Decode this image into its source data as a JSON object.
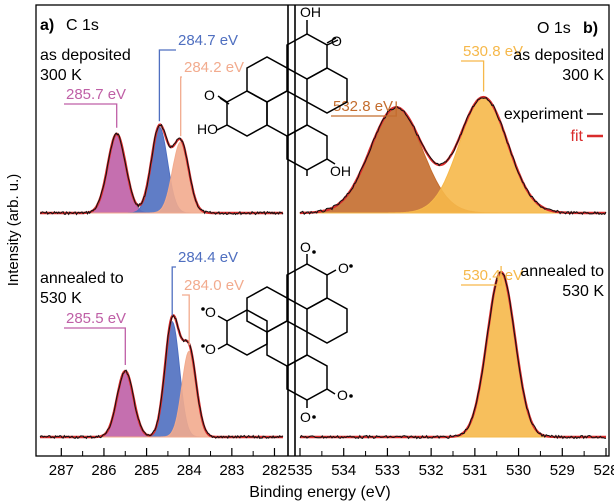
{
  "figure": {
    "ylabel": "Intensity (arb. u.)",
    "xlabel": "Binding energy (eV)",
    "legend": {
      "experiment": "experiment",
      "fit": "fit"
    },
    "colors": {
      "experiment": "#111111",
      "fit": "#d92b2b",
      "c_magenta": "#bf5fa6",
      "c_blue": "#4f6fc0",
      "c_peach": "#f2ab8e",
      "o_orange": "#f6b84a",
      "o_brown": "#c46d2e"
    }
  },
  "panel_a": {
    "tag": "a)",
    "element": "C 1s",
    "top_condition": [
      "as deposited",
      "300 K"
    ],
    "bottom_condition": [
      "annealed to",
      "530 K"
    ],
    "xticks": [
      "287",
      "286",
      "285",
      "284",
      "283",
      "282"
    ]
  },
  "panel_b": {
    "tag": "b)",
    "element": "O 1s",
    "top_condition": [
      "as deposited",
      "300 K"
    ],
    "bottom_condition": [
      "annealed to",
      "530 K"
    ],
    "xticks": [
      "535",
      "534",
      "533",
      "532",
      "531",
      "530",
      "529",
      "528"
    ]
  },
  "molecules": {
    "top_labels": [
      "OH",
      "O",
      "O",
      "HO",
      "OH"
    ],
    "bottom_labels": [
      "O",
      "O",
      "O",
      "O",
      "O",
      "O"
    ]
  },
  "chart_data": [
    {
      "type": "area",
      "panel": "a",
      "spectrum": "C 1s",
      "condition": "as deposited 300 K",
      "xlim": [
        287.5,
        281.8
      ],
      "x_reversed": true,
      "xlabel": "Binding energy (eV)",
      "ylabel": "Intensity (arb. u.)",
      "peak_labels": [
        "285.7 eV",
        "284.7 eV",
        "284.2 eV"
      ],
      "series": [
        {
          "name": "285.7 eV",
          "color": "#bf5fa6",
          "center": 285.7,
          "fwhm": 0.5,
          "height": 0.48
        },
        {
          "name": "284.7 eV",
          "color": "#4f6fc0",
          "center": 284.7,
          "fwhm": 0.45,
          "height": 0.52
        },
        {
          "name": "284.2 eV",
          "color": "#f2ab8e",
          "center": 284.2,
          "fwhm": 0.45,
          "height": 0.43
        }
      ]
    },
    {
      "type": "area",
      "panel": "a",
      "spectrum": "C 1s",
      "condition": "annealed to 530 K",
      "xlim": [
        287.5,
        281.8
      ],
      "x_reversed": true,
      "xlabel": "Binding energy (eV)",
      "ylabel": "Intensity (arb. u.)",
      "peak_labels": [
        "285.5 eV",
        "284.4 eV",
        "284.0 eV"
      ],
      "series": [
        {
          "name": "285.5 eV",
          "color": "#bf5fa6",
          "center": 285.5,
          "fwhm": 0.45,
          "height": 0.4
        },
        {
          "name": "284.4 eV",
          "color": "#4f6fc0",
          "center": 284.4,
          "fwhm": 0.4,
          "height": 0.7
        },
        {
          "name": "284.0 eV",
          "color": "#f2ab8e",
          "center": 284.0,
          "fwhm": 0.4,
          "height": 0.52
        }
      ]
    },
    {
      "type": "area",
      "panel": "b",
      "spectrum": "O 1s",
      "condition": "as deposited 300 K",
      "xlim": [
        535.0,
        528.0
      ],
      "x_reversed": true,
      "xlabel": "Binding energy (eV)",
      "ylabel": "Intensity (arb. u.)",
      "peak_labels": [
        "532.8 eV",
        "530.8 eV"
      ],
      "series": [
        {
          "name": "532.8 eV",
          "color": "#c46d2e",
          "center": 532.8,
          "fwhm": 1.4,
          "height": 0.64
        },
        {
          "name": "530.8 eV",
          "color": "#f6b84a",
          "center": 530.8,
          "fwhm": 1.3,
          "height": 0.7
        }
      ]
    },
    {
      "type": "area",
      "panel": "b",
      "spectrum": "O 1s",
      "condition": "annealed to 530 K",
      "xlim": [
        535.0,
        528.0
      ],
      "x_reversed": true,
      "xlabel": "Binding energy (eV)",
      "ylabel": "Intensity (arb. u.)",
      "peak_labels": [
        "530.4 eV"
      ],
      "series": [
        {
          "name": "530.4 eV",
          "color": "#f6b84a",
          "center": 530.4,
          "fwhm": 0.75,
          "height": 1.0
        }
      ]
    }
  ]
}
